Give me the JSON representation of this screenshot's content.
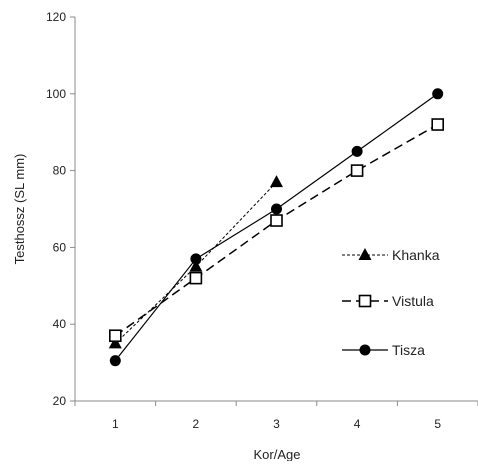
{
  "chart_data": {
    "type": "line",
    "title": "",
    "xlabel": "Kor/Age",
    "ylabel": "Testhossz (SL mm)",
    "x": [
      1,
      2,
      3,
      4,
      5
    ],
    "xlim": [
      0.5,
      5.5
    ],
    "ylim": [
      20,
      120
    ],
    "yticks": [
      20,
      40,
      60,
      80,
      100,
      120
    ],
    "grid": false,
    "legend_position": "right",
    "series": [
      {
        "name": "Khanka",
        "x": [
          1,
          2,
          3
        ],
        "values": [
          35,
          55,
          77
        ],
        "marker": "triangle",
        "line_style": "dotted",
        "color": "#000000"
      },
      {
        "name": "Vistula",
        "x": [
          1,
          2,
          3,
          4,
          5
        ],
        "values": [
          37,
          52,
          67,
          80,
          92
        ],
        "marker": "open-square",
        "line_style": "dashed",
        "color": "#000000"
      },
      {
        "name": "Tisza",
        "x": [
          1,
          2,
          3,
          4,
          5
        ],
        "values": [
          30.5,
          57,
          70,
          85,
          100
        ],
        "marker": "circle",
        "line_style": "solid",
        "color": "#000000"
      }
    ]
  }
}
